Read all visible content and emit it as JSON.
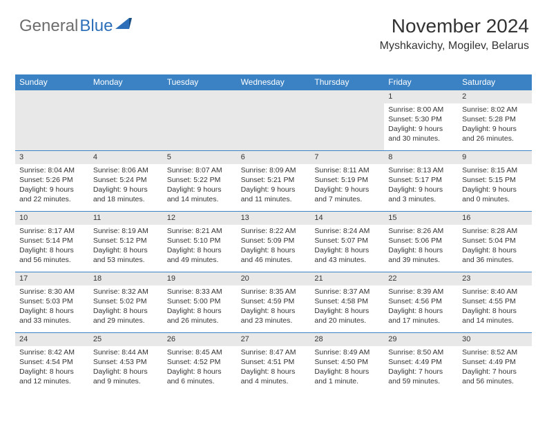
{
  "logo": {
    "gray": "General",
    "blue": "Blue"
  },
  "title": "November 2024",
  "location": "Myshkavichy, Mogilev, Belarus",
  "colors": {
    "header_bg": "#3b82c4",
    "header_text": "#ffffff",
    "shade": "#e8e8e8",
    "text": "#333333",
    "logo_gray": "#6d6d6d",
    "logo_blue": "#2d6fb8",
    "border": "#3b82c4"
  },
  "day_headers": [
    "Sunday",
    "Monday",
    "Tuesday",
    "Wednesday",
    "Thursday",
    "Friday",
    "Saturday"
  ],
  "leading_blanks": 5,
  "days": [
    {
      "n": "1",
      "sr": "8:00 AM",
      "ss": "5:30 PM",
      "dl": "9 hours and 30 minutes."
    },
    {
      "n": "2",
      "sr": "8:02 AM",
      "ss": "5:28 PM",
      "dl": "9 hours and 26 minutes."
    },
    {
      "n": "3",
      "sr": "8:04 AM",
      "ss": "5:26 PM",
      "dl": "9 hours and 22 minutes."
    },
    {
      "n": "4",
      "sr": "8:06 AM",
      "ss": "5:24 PM",
      "dl": "9 hours and 18 minutes."
    },
    {
      "n": "5",
      "sr": "8:07 AM",
      "ss": "5:22 PM",
      "dl": "9 hours and 14 minutes."
    },
    {
      "n": "6",
      "sr": "8:09 AM",
      "ss": "5:21 PM",
      "dl": "9 hours and 11 minutes."
    },
    {
      "n": "7",
      "sr": "8:11 AM",
      "ss": "5:19 PM",
      "dl": "9 hours and 7 minutes."
    },
    {
      "n": "8",
      "sr": "8:13 AM",
      "ss": "5:17 PM",
      "dl": "9 hours and 3 minutes."
    },
    {
      "n": "9",
      "sr": "8:15 AM",
      "ss": "5:15 PM",
      "dl": "9 hours and 0 minutes."
    },
    {
      "n": "10",
      "sr": "8:17 AM",
      "ss": "5:14 PM",
      "dl": "8 hours and 56 minutes."
    },
    {
      "n": "11",
      "sr": "8:19 AM",
      "ss": "5:12 PM",
      "dl": "8 hours and 53 minutes."
    },
    {
      "n": "12",
      "sr": "8:21 AM",
      "ss": "5:10 PM",
      "dl": "8 hours and 49 minutes."
    },
    {
      "n": "13",
      "sr": "8:22 AM",
      "ss": "5:09 PM",
      "dl": "8 hours and 46 minutes."
    },
    {
      "n": "14",
      "sr": "8:24 AM",
      "ss": "5:07 PM",
      "dl": "8 hours and 43 minutes."
    },
    {
      "n": "15",
      "sr": "8:26 AM",
      "ss": "5:06 PM",
      "dl": "8 hours and 39 minutes."
    },
    {
      "n": "16",
      "sr": "8:28 AM",
      "ss": "5:04 PM",
      "dl": "8 hours and 36 minutes."
    },
    {
      "n": "17",
      "sr": "8:30 AM",
      "ss": "5:03 PM",
      "dl": "8 hours and 33 minutes."
    },
    {
      "n": "18",
      "sr": "8:32 AM",
      "ss": "5:02 PM",
      "dl": "8 hours and 29 minutes."
    },
    {
      "n": "19",
      "sr": "8:33 AM",
      "ss": "5:00 PM",
      "dl": "8 hours and 26 minutes."
    },
    {
      "n": "20",
      "sr": "8:35 AM",
      "ss": "4:59 PM",
      "dl": "8 hours and 23 minutes."
    },
    {
      "n": "21",
      "sr": "8:37 AM",
      "ss": "4:58 PM",
      "dl": "8 hours and 20 minutes."
    },
    {
      "n": "22",
      "sr": "8:39 AM",
      "ss": "4:56 PM",
      "dl": "8 hours and 17 minutes."
    },
    {
      "n": "23",
      "sr": "8:40 AM",
      "ss": "4:55 PM",
      "dl": "8 hours and 14 minutes."
    },
    {
      "n": "24",
      "sr": "8:42 AM",
      "ss": "4:54 PM",
      "dl": "8 hours and 12 minutes."
    },
    {
      "n": "25",
      "sr": "8:44 AM",
      "ss": "4:53 PM",
      "dl": "8 hours and 9 minutes."
    },
    {
      "n": "26",
      "sr": "8:45 AM",
      "ss": "4:52 PM",
      "dl": "8 hours and 6 minutes."
    },
    {
      "n": "27",
      "sr": "8:47 AM",
      "ss": "4:51 PM",
      "dl": "8 hours and 4 minutes."
    },
    {
      "n": "28",
      "sr": "8:49 AM",
      "ss": "4:50 PM",
      "dl": "8 hours and 1 minute."
    },
    {
      "n": "29",
      "sr": "8:50 AM",
      "ss": "4:49 PM",
      "dl": "7 hours and 59 minutes."
    },
    {
      "n": "30",
      "sr": "8:52 AM",
      "ss": "4:49 PM",
      "dl": "7 hours and 56 minutes."
    }
  ],
  "labels": {
    "sunrise": "Sunrise:",
    "sunset": "Sunset:",
    "daylight": "Daylight:"
  }
}
